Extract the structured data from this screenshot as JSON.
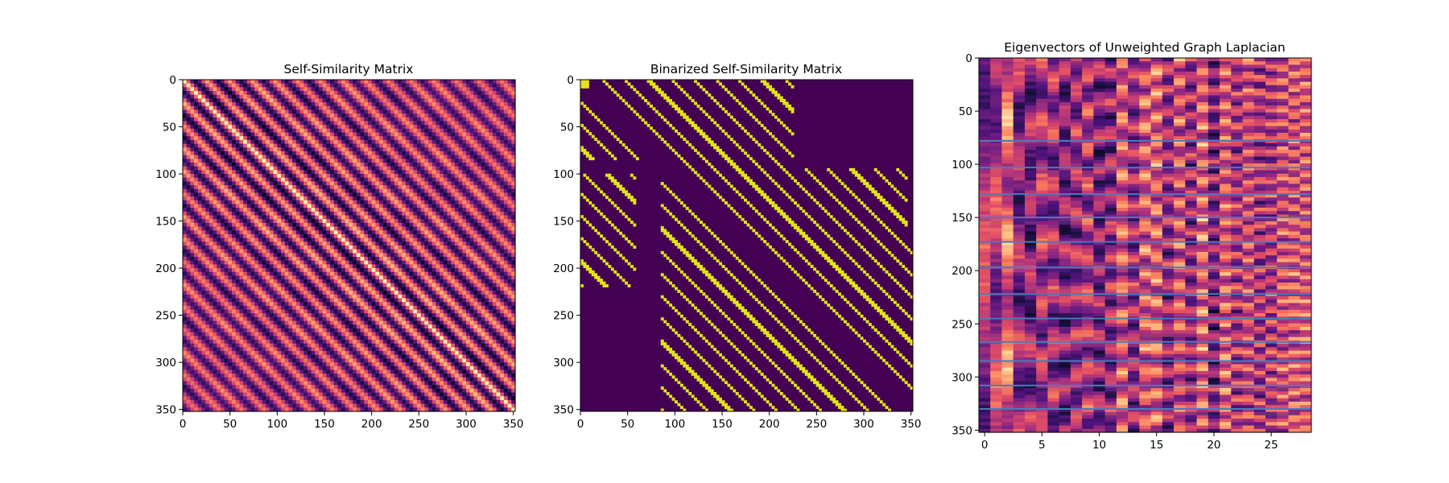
{
  "figure": {
    "background": "#ffffff"
  },
  "chart_data": [
    {
      "type": "heatmap",
      "title": "Self-Similarity Matrix",
      "xlabel": "",
      "ylabel": "",
      "colormap": "magma",
      "xlim": [
        0,
        352
      ],
      "ylim": [
        352,
        0
      ],
      "xticks": [
        0,
        50,
        100,
        150,
        200,
        250,
        300,
        350
      ],
      "yticks": [
        0,
        50,
        100,
        150,
        200,
        250,
        300,
        350
      ],
      "tick_labels_x": [
        "0",
        "50",
        "100",
        "150",
        "200",
        "250",
        "300",
        "350"
      ],
      "tick_labels_y": [
        "0",
        "50",
        "100",
        "150",
        "200",
        "250",
        "300",
        "350"
      ],
      "pattern": {
        "main_diagonal": "bright",
        "diagonal_stripe_period": 24,
        "stripes": "alternating dark/bright bands parallel to main diagonal"
      }
    },
    {
      "type": "heatmap",
      "title": "Binarized Self-Similarity Matrix",
      "xlabel": "",
      "ylabel": "",
      "colormap": "viridis",
      "values_range": [
        0,
        1
      ],
      "background_color": "#440154",
      "foreground_color": "#e3e418",
      "xlim": [
        0,
        352
      ],
      "ylim": [
        352,
        0
      ],
      "xticks": [
        0,
        50,
        100,
        150,
        200,
        250,
        300,
        350
      ],
      "yticks": [
        0,
        50,
        100,
        150,
        200,
        250,
        300,
        350
      ],
      "tick_labels_x": [
        "0",
        "50",
        "100",
        "150",
        "200",
        "250",
        "300",
        "350"
      ],
      "tick_labels_y": [
        "0",
        "50",
        "100",
        "150",
        "200",
        "250",
        "300",
        "350"
      ],
      "pattern": {
        "diagonal_stripe_period": 24,
        "corner_block_end": 10,
        "lower_left_gap_start": 85
      }
    },
    {
      "type": "heatmap",
      "title": "Eigenvectors of Unweighted Graph Laplacian",
      "xlabel": "",
      "ylabel": "",
      "colormap": "magma",
      "xlim": [
        -0.5,
        28.5
      ],
      "ylim": [
        352,
        0
      ],
      "n_columns": 29,
      "xticks": [
        0,
        5,
        10,
        15,
        20,
        25
      ],
      "yticks": [
        0,
        50,
        100,
        150,
        200,
        250,
        300,
        350
      ],
      "tick_labels_x": [
        "0",
        "5",
        "10",
        "15",
        "20",
        "25"
      ],
      "tick_labels_y": [
        "0",
        "50",
        "100",
        "150",
        "200",
        "250",
        "300",
        "350"
      ],
      "boundary_lines": [
        78,
        103,
        128,
        150,
        173,
        197,
        222,
        245,
        267,
        285,
        308,
        330
      ],
      "boundary_line_color": "#4e79b8"
    }
  ]
}
